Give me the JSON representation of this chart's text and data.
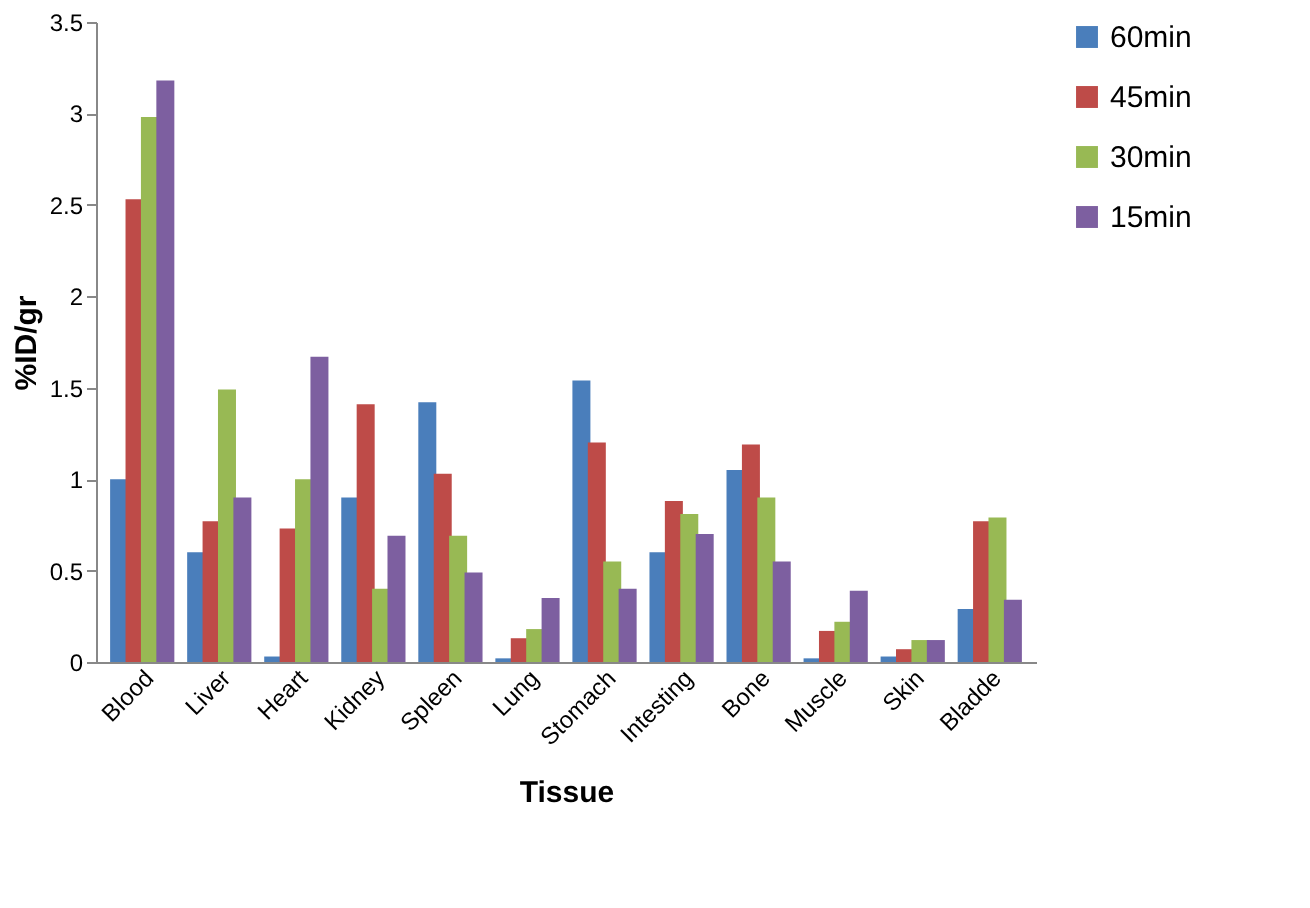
{
  "chart_data": {
    "type": "bar",
    "xlabel": "Tissue",
    "ylabel": "%ID/gr",
    "categories": [
      "Blood",
      "Liver",
      "Heart",
      "Kidney",
      "Spleen",
      "Lung",
      "Stomach",
      "Intesting",
      "Bone",
      "Muscle",
      "Skin",
      "Bladde"
    ],
    "series": [
      {
        "name": "60min",
        "color": "#4a7ebb",
        "values": [
          1.0,
          0.6,
          0.03,
          0.9,
          1.42,
          0.02,
          1.54,
          0.6,
          1.05,
          0.02,
          0.03,
          0.29
        ]
      },
      {
        "name": "45min",
        "color": "#be4b48",
        "values": [
          2.53,
          0.77,
          0.73,
          1.41,
          1.03,
          0.13,
          1.2,
          0.88,
          1.19,
          0.17,
          0.07,
          0.77
        ]
      },
      {
        "name": "30min",
        "color": "#98b954",
        "values": [
          2.98,
          1.49,
          1.0,
          0.4,
          0.69,
          0.18,
          0.55,
          0.81,
          0.9,
          0.22,
          0.12,
          0.79
        ]
      },
      {
        "name": "15min",
        "color": "#7d5fa0",
        "values": [
          3.18,
          0.9,
          1.67,
          0.69,
          0.49,
          0.35,
          0.4,
          0.7,
          0.55,
          0.39,
          0.12,
          0.34
        ]
      }
    ],
    "ylim": [
      0,
      3.5
    ],
    "yticks": [
      0,
      0.5,
      1,
      1.5,
      2,
      2.5,
      3,
      3.5
    ],
    "grid": false,
    "legend": "right"
  }
}
